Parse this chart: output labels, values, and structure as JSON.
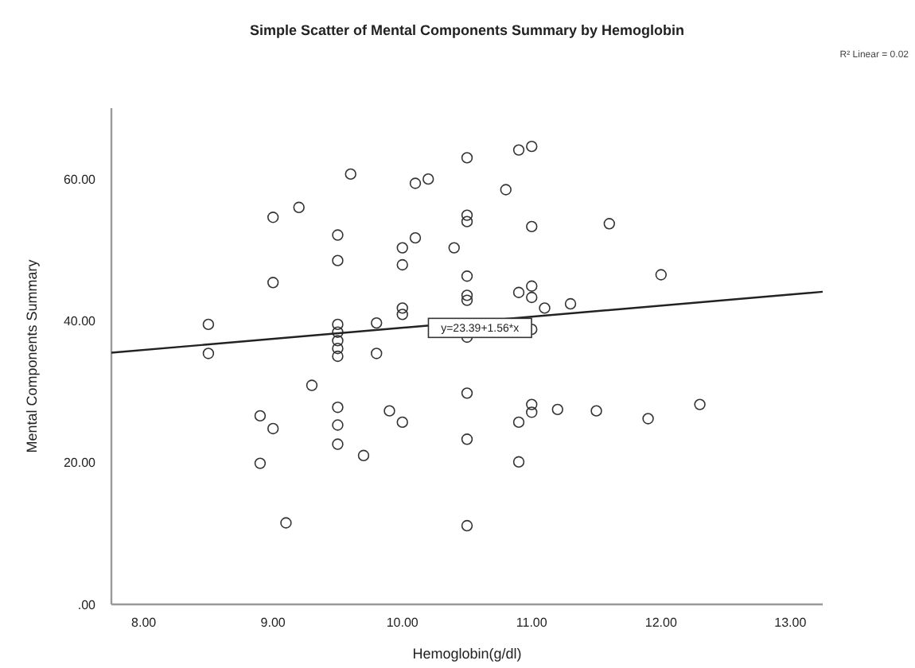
{
  "chart_data": {
    "type": "scatter",
    "title": "Simple Scatter of Mental Components Summary by Hemoglobin",
    "xlabel": "Hemoglobin(g/dl)",
    "ylabel": "Mental Components Summary",
    "xlim": [
      7.75,
      13.25
    ],
    "ylim": [
      0,
      70
    ],
    "xticks": [
      {
        "value": 8,
        "label": "8.00"
      },
      {
        "value": 9,
        "label": "9.00"
      },
      {
        "value": 10,
        "label": "10.00"
      },
      {
        "value": 11,
        "label": "11.00"
      },
      {
        "value": 12,
        "label": "12.00"
      },
      {
        "value": 13,
        "label": "13.00"
      }
    ],
    "yticks": [
      {
        "value": 0,
        "label": ".00"
      },
      {
        "value": 20,
        "label": "20.00"
      },
      {
        "value": 40,
        "label": "40.00"
      },
      {
        "value": 60,
        "label": "60.00"
      }
    ],
    "grid": false,
    "annotations": [
      "R² Linear = 0.02",
      {
        "text": "y=23.39+1.56*x",
        "x": 10.6,
        "y": 39
      }
    ],
    "series": [
      {
        "marker": "circle",
        "color": "#333333",
        "x": [
          8.5,
          8.5,
          9.0,
          9.2,
          9.0,
          9.6,
          9.5,
          9.5,
          9.5,
          9.5,
          9.5,
          9.5,
          9.5,
          9.5,
          9.5,
          9.5,
          9.3,
          8.9,
          9.0,
          8.9,
          9.1,
          9.8,
          9.8,
          9.7,
          9.9,
          10.0,
          10.0,
          10.1,
          10.0,
          10.0,
          10.0,
          10.1,
          10.2,
          10.4,
          10.5,
          10.5,
          10.5,
          10.5,
          10.5,
          10.5,
          10.5,
          10.5,
          10.5,
          10.5,
          10.8,
          10.9,
          11.0,
          11.0,
          11.6,
          12.0,
          10.9,
          11.0,
          11.0,
          11.1,
          11.3,
          11.0,
          10.9,
          11.0,
          11.0,
          11.2,
          11.5,
          11.9,
          12.3,
          10.9
        ],
        "values": [
          39.5,
          35.4,
          54.6,
          56.0,
          45.4,
          60.7,
          52.1,
          48.5,
          39.5,
          38.4,
          37.2,
          36.1,
          35.0,
          27.8,
          25.3,
          22.6,
          30.9,
          26.6,
          24.8,
          19.9,
          11.5,
          39.7,
          35.4,
          21.0,
          27.3,
          25.7,
          50.3,
          51.7,
          47.9,
          41.8,
          40.9,
          59.4,
          60.0,
          50.3,
          63.0,
          54.9,
          54.0,
          46.3,
          43.6,
          42.9,
          37.7,
          29.8,
          23.3,
          11.1,
          58.5,
          64.1,
          64.6,
          53.3,
          53.7,
          46.5,
          44.0,
          44.9,
          43.3,
          41.8,
          42.4,
          38.8,
          25.7,
          28.2,
          27.1,
          27.5,
          27.3,
          26.2,
          28.2,
          20.1
        ]
      },
      {
        "type": "line",
        "color": "#222222",
        "x": [
          7.75,
          13.25
        ],
        "values": [
          35.5,
          44.1
        ],
        "line_style": "solid"
      }
    ]
  }
}
